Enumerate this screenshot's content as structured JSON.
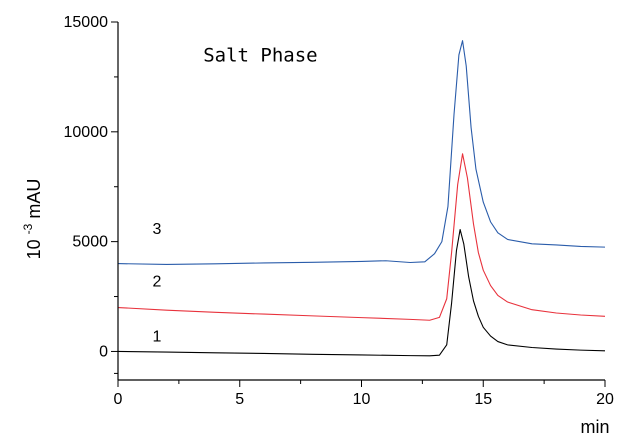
{
  "chart_data": {
    "type": "line",
    "title": "",
    "xlabel": "min",
    "ylabel": "10 -3 mAU",
    "ylabel_parts": {
      "base": "10",
      "exponent": "-3",
      "unit": "mAU"
    },
    "xlim": [
      0,
      20
    ],
    "ylim": [
      -1300,
      15000
    ],
    "xticks": [
      0,
      5,
      10,
      15,
      20
    ],
    "yticks": [
      0,
      5000,
      10000,
      15000
    ],
    "x_tick_labels": [
      "0",
      "5",
      "10",
      "15",
      "20"
    ],
    "y_tick_labels": [
      "0",
      "5000",
      "10000",
      "15000"
    ],
    "grid": false,
    "legend": "none",
    "annotations": [
      {
        "text": "Salt Phase",
        "x": 3.5,
        "y": 13200
      }
    ],
    "series": [
      {
        "name": "1",
        "color": "#000000",
        "label_at": {
          "x": 1.6,
          "y": 450
        },
        "points": [
          [
            0,
            0
          ],
          [
            2,
            -30
          ],
          [
            4,
            -60
          ],
          [
            6,
            -90
          ],
          [
            8,
            -130
          ],
          [
            10,
            -160
          ],
          [
            12,
            -190
          ],
          [
            12.8,
            -200
          ],
          [
            13.2,
            -170
          ],
          [
            13.5,
            300
          ],
          [
            13.7,
            2200
          ],
          [
            13.9,
            4600
          ],
          [
            14.05,
            5550
          ],
          [
            14.2,
            4900
          ],
          [
            14.4,
            3400
          ],
          [
            14.6,
            2300
          ],
          [
            14.8,
            1600
          ],
          [
            15.0,
            1100
          ],
          [
            15.3,
            700
          ],
          [
            15.6,
            450
          ],
          [
            16,
            300
          ],
          [
            17,
            180
          ],
          [
            18,
            110
          ],
          [
            19,
            60
          ],
          [
            20,
            30
          ]
        ]
      },
      {
        "name": "2",
        "color": "#e8323c",
        "label_at": {
          "x": 1.6,
          "y": 2950
        },
        "points": [
          [
            0,
            2000
          ],
          [
            2,
            1880
          ],
          [
            4,
            1780
          ],
          [
            6,
            1700
          ],
          [
            8,
            1620
          ],
          [
            10,
            1540
          ],
          [
            12,
            1460
          ],
          [
            12.8,
            1420
          ],
          [
            13.2,
            1550
          ],
          [
            13.5,
            2400
          ],
          [
            13.7,
            4500
          ],
          [
            13.95,
            7600
          ],
          [
            14.15,
            9000
          ],
          [
            14.35,
            7900
          ],
          [
            14.6,
            5800
          ],
          [
            14.8,
            4500
          ],
          [
            15.0,
            3700
          ],
          [
            15.3,
            3000
          ],
          [
            15.6,
            2550
          ],
          [
            16,
            2250
          ],
          [
            17,
            1900
          ],
          [
            18,
            1750
          ],
          [
            19,
            1660
          ],
          [
            20,
            1600
          ]
        ]
      },
      {
        "name": "3",
        "color": "#2a5caa",
        "label_at": {
          "x": 1.6,
          "y": 5350
        },
        "points": [
          [
            0,
            4000
          ],
          [
            2,
            3960
          ],
          [
            4,
            3990
          ],
          [
            6,
            4030
          ],
          [
            8,
            4060
          ],
          [
            10,
            4100
          ],
          [
            11,
            4130
          ],
          [
            12,
            4050
          ],
          [
            12.6,
            4080
          ],
          [
            13.0,
            4450
          ],
          [
            13.3,
            5000
          ],
          [
            13.55,
            6600
          ],
          [
            13.8,
            10800
          ],
          [
            14.0,
            13500
          ],
          [
            14.15,
            14150
          ],
          [
            14.3,
            13000
          ],
          [
            14.5,
            10200
          ],
          [
            14.7,
            8300
          ],
          [
            15.0,
            6800
          ],
          [
            15.3,
            5900
          ],
          [
            15.6,
            5400
          ],
          [
            16,
            5100
          ],
          [
            17,
            4900
          ],
          [
            18,
            4850
          ],
          [
            19,
            4780
          ],
          [
            20,
            4750
          ]
        ]
      }
    ]
  }
}
